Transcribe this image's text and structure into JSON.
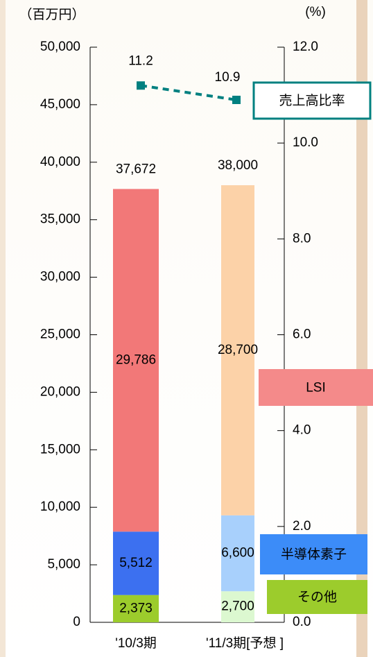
{
  "chart_data": {
    "type": "bar",
    "ylabel": "（百万円）",
    "y2label": "(%)",
    "categories": [
      "'10/3期",
      "'11/3期[予想 ]"
    ],
    "series": [
      {
        "name": "その他",
        "colors": [
          "#9ccc2c",
          "#dcf8d0"
        ],
        "values": [
          2373,
          2700
        ],
        "value_labels": [
          "2,373",
          "2,700"
        ]
      },
      {
        "name": "半導体素子",
        "colors": [
          "#3c70f0",
          "#a8d0fc"
        ],
        "values": [
          5512,
          6600
        ],
        "value_labels": [
          "5,512",
          "6,600"
        ]
      },
      {
        "name": "LSI",
        "colors": [
          "#f27878",
          "#fcd2a8"
        ],
        "values": [
          29786,
          28700
        ],
        "value_labels": [
          "29,786",
          "28,700"
        ]
      },
      {
        "name": "売上高比率",
        "type": "line",
        "axis": "y2",
        "color": "#008080",
        "values": [
          11.2,
          10.9
        ]
      }
    ],
    "totals": [
      37672,
      38000
    ],
    "total_labels": [
      "37,672",
      "38,000"
    ],
    "ylim": [
      0,
      50000
    ],
    "yticks": [
      0,
      {
        "value": 5000,
        "label": "5,000"
      },
      {
        "value": 10000,
        "label": "10,000"
      },
      {
        "value": 15000,
        "label": "15,000"
      },
      {
        "value": 20000,
        "label": "20,000"
      },
      {
        "value": 25000,
        "label": "25,000"
      },
      {
        "value": 30000,
        "label": "30,000"
      },
      {
        "value": 35000,
        "label": "35,000"
      },
      {
        "value": 40000,
        "label": "40,000"
      },
      {
        "value": 45000,
        "label": "45,000"
      },
      {
        "value": 50000,
        "label": "50,000"
      }
    ],
    "y2lim": [
      0,
      12
    ],
    "y2ticks": [
      {
        "value": 0,
        "label": "0.0"
      },
      {
        "value": 2,
        "label": "2.0"
      },
      {
        "value": 4,
        "label": "4.0"
      },
      {
        "value": 6,
        "label": "6.0"
      },
      {
        "value": 8,
        "label": "8.0"
      },
      {
        "value": 10,
        "label": "10.0"
      },
      {
        "value": 12,
        "label": "12.0"
      }
    ]
  }
}
